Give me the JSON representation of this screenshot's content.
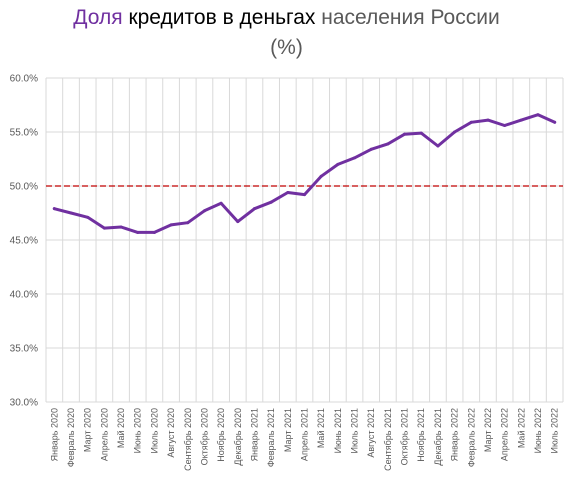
{
  "title": {
    "part1": "Доля",
    "part2": " кредитов в деньгах",
    "part3": " населения России",
    "line2": "(%)"
  },
  "colors": {
    "title_accent": "#7030A0",
    "title_dark": "#000000",
    "title_gray": "#595959",
    "line": "#7030A0",
    "threshold": "#C00000",
    "grid": "#D9D9D9"
  },
  "chart_data": {
    "type": "line",
    "title": "Доля кредитов в деньгах населения России (%)",
    "xlabel": "",
    "ylabel": "",
    "ylim": [
      30,
      60
    ],
    "y_ticks": [
      60,
      55,
      50,
      45,
      40,
      35,
      30
    ],
    "y_tick_labels": [
      "60.0%",
      "55.0%",
      "50.0%",
      "45.0%",
      "40.0%",
      "35.0%",
      "30.0%"
    ],
    "grid": true,
    "legend": "none",
    "reference_line": {
      "value": 50,
      "style": "dashed"
    },
    "categories": [
      "Январь 2020",
      "Февраль 2020",
      "Март 2020",
      "Апрель 2020",
      "Май 2020",
      "Июнь 2020",
      "Июль 2020",
      "Август 2020",
      "Сентябрь 2020",
      "Октябрь 2020",
      "Ноябрь 2020",
      "Декабрь 2020",
      "Январь 2021",
      "Февраль 2021",
      "Март 2021",
      "Апрель 2021",
      "Май 2021",
      "Июнь 2021",
      "Июль 2021",
      "Август 2021",
      "Сентябрь 2021",
      "Октябрь 2021",
      "Ноябрь 2021",
      "Декабрь 2021",
      "Январь 2022",
      "Февраль 2022",
      "Март 2022",
      "Апрель 2022",
      "Май 2022",
      "Июнь 2022",
      "Июль 2022"
    ],
    "series": [
      {
        "values": [
          47.9,
          47.5,
          47.1,
          46.1,
          46.2,
          45.7,
          45.7,
          46.4,
          46.6,
          47.7,
          48.4,
          46.7,
          47.9,
          48.5,
          49.4,
          49.2,
          50.9,
          52.0,
          52.6,
          53.4,
          53.9,
          54.8,
          54.9,
          53.7,
          55.0,
          55.9,
          56.1,
          55.6,
          56.1,
          56.6,
          55.9
        ]
      }
    ]
  }
}
